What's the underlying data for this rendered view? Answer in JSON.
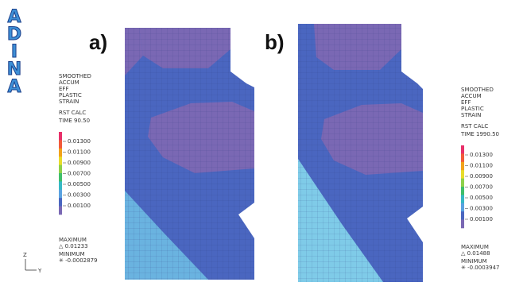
{
  "logo": [
    "A",
    "D",
    "I",
    "N",
    "A"
  ],
  "panels": [
    {
      "label": "a)"
    },
    {
      "label": "b)"
    }
  ],
  "legends": [
    {
      "title": [
        "SMOOTHED",
        "ACCUM",
        "EFF",
        "PLASTIC",
        "STRAIN"
      ],
      "calc": "RST CALC",
      "time": "TIME 90.50",
      "levels": [
        "0.01300",
        "0.01100",
        "0.00900",
        "0.00700",
        "0.00500",
        "0.00300",
        "0.00100"
      ],
      "maximum_label": "MAXIMUM",
      "maximum": "△ 0.01233",
      "minimum_label": "MINIMUM",
      "minimum": "✳ -0.0002879"
    },
    {
      "title": [
        "SMOOTHED",
        "ACCUM",
        "EFF",
        "PLASTIC",
        "STRAIN"
      ],
      "calc": "RST CALC",
      "time": "TIME 1990.50",
      "levels": [
        "0.01300",
        "0.01100",
        "0.00900",
        "0.00700",
        "0.00500",
        "0.00300",
        "0.00100"
      ],
      "maximum_label": "MAXIMUM",
      "maximum": "△ 0.01488",
      "minimum_label": "MINIMUM",
      "minimum": "✳ -0.0003947"
    }
  ],
  "axes": {
    "vertical": "Z",
    "horizontal": "Y"
  }
}
